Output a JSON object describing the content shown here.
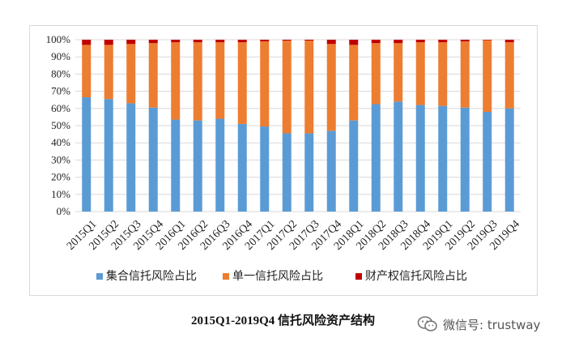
{
  "chart_data": {
    "type": "bar",
    "stacked": true,
    "title": "2015Q1-2019Q4 信托风险资产结构",
    "xlabel": "",
    "ylabel": "",
    "ylim": [
      0,
      100
    ],
    "y_ticks": [
      "0%",
      "10%",
      "20%",
      "30%",
      "40%",
      "50%",
      "60%",
      "70%",
      "80%",
      "90%",
      "100%"
    ],
    "grid": true,
    "legend_position": "bottom",
    "categories": [
      "2015Q1",
      "2015Q2",
      "2015Q3",
      "2015Q4",
      "2016Q1",
      "2016Q2",
      "2016Q3",
      "2016Q4",
      "2017Q1",
      "2017Q2",
      "2017Q3",
      "2017Q4",
      "2018Q1",
      "2018Q2",
      "2018Q3",
      "2018Q4",
      "2019Q1",
      "2019Q2",
      "2019Q3",
      "2019Q4"
    ],
    "series": [
      {
        "name": "集合信托风险占比",
        "color": "#5b9bd5",
        "values": [
          66.5,
          65.5,
          63,
          60.5,
          53.5,
          53,
          54,
          51,
          49.5,
          45.5,
          45.5,
          47,
          53,
          62.5,
          64,
          62,
          61.5,
          60.5,
          58,
          60
        ]
      },
      {
        "name": "单一信托风险占比",
        "color": "#ed7d31",
        "values": [
          30.5,
          31.5,
          34.5,
          37.5,
          45,
          45.5,
          44.5,
          47.5,
          49.5,
          54,
          54,
          50.5,
          44,
          35.5,
          34,
          36.5,
          37,
          38.5,
          41.7,
          38.5
        ]
      },
      {
        "name": "财产权信托风险占比",
        "color": "#c00000",
        "values": [
          3,
          3,
          2.5,
          2,
          1.5,
          1.5,
          1.5,
          1.5,
          1,
          0.5,
          0.5,
          2.5,
          3,
          2,
          2,
          1.5,
          1.5,
          1,
          0.3,
          1.5
        ]
      }
    ]
  },
  "watermark": {
    "label": "微信号: trustway",
    "icon": "wechat-icon"
  }
}
